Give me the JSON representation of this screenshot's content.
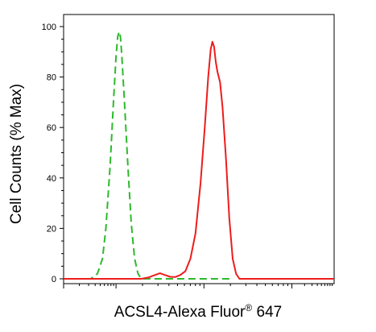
{
  "chart_data": {
    "type": "line",
    "xlabel_main": "ACSL4-Alexa Fluor",
    "xlabel_sup": "®",
    "xlabel_tail": " 647",
    "ylabel": "Cell Counts (% Max)",
    "ylim": [
      0,
      100
    ],
    "yticks": [
      "0",
      "20",
      "40",
      "60",
      "80",
      "100"
    ],
    "xscale": "log",
    "grid": false,
    "series": [
      {
        "style": "dashed",
        "color": "#2db92d",
        "points": [
          [
            0.0,
            0
          ],
          [
            1.6,
            0
          ],
          [
            2.0,
            2
          ],
          [
            2.3,
            8
          ],
          [
            2.5,
            20
          ],
          [
            2.75,
            45
          ],
          [
            2.95,
            70
          ],
          [
            3.1,
            88
          ],
          [
            3.2,
            96
          ],
          [
            3.28,
            98
          ],
          [
            3.36,
            96
          ],
          [
            3.45,
            88
          ],
          [
            3.6,
            70
          ],
          [
            3.8,
            45
          ],
          [
            4.0,
            22
          ],
          [
            4.2,
            8
          ],
          [
            4.4,
            2
          ],
          [
            4.6,
            0
          ],
          [
            10.0,
            0
          ]
        ]
      },
      {
        "style": "solid",
        "color": "#ee1c1c",
        "points": [
          [
            0.0,
            0
          ],
          [
            4.6,
            0
          ],
          [
            5.0,
            0.5
          ],
          [
            5.4,
            1.5
          ],
          [
            5.7,
            2.2
          ],
          [
            6.0,
            1.5
          ],
          [
            6.3,
            0.8
          ],
          [
            6.6,
            0.7
          ],
          [
            6.9,
            1.5
          ],
          [
            7.2,
            3
          ],
          [
            7.5,
            8
          ],
          [
            7.8,
            18
          ],
          [
            8.1,
            38
          ],
          [
            8.35,
            60
          ],
          [
            8.55,
            80
          ],
          [
            8.7,
            91
          ],
          [
            8.8,
            94
          ],
          [
            8.9,
            92
          ],
          [
            9.0,
            86
          ],
          [
            9.1,
            82
          ],
          [
            9.25,
            78
          ],
          [
            9.4,
            68
          ],
          [
            9.6,
            48
          ],
          [
            9.8,
            24
          ],
          [
            10.0,
            8
          ],
          [
            10.2,
            2
          ],
          [
            10.4,
            0
          ],
          [
            16.0,
            0
          ]
        ]
      }
    ]
  }
}
